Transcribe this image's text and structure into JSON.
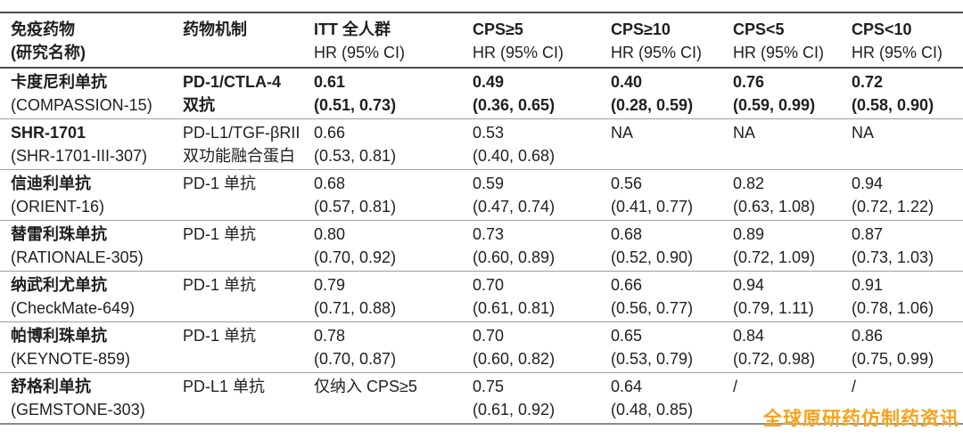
{
  "colors": {
    "text": "#1f1f1f",
    "border_strong": "#4d4d4d",
    "border_light": "#9e9e9e",
    "watermark": "#F5A31D"
  },
  "table": {
    "headers": [
      {
        "line1": "免疫药物",
        "line2": "(研究名称)"
      },
      {
        "line1": "药物机制",
        "line2": ""
      },
      {
        "line1": "ITT 全人群",
        "line2": "HR (95% CI)"
      },
      {
        "line1": "CPS≥5",
        "line2": "HR (95% CI)"
      },
      {
        "line1": "CPS≥10",
        "line2": "HR (95% CI)"
      },
      {
        "line1": "CPS<5",
        "line2": "HR (95% CI)"
      },
      {
        "line1": "CPS<10",
        "line2": "HR (95% CI)"
      }
    ],
    "rows": [
      {
        "drug": "卡度尼利单抗",
        "study": "(COMPASSION-15)",
        "mech1": "PD-1/CTLA-4",
        "mech2": "双抗",
        "emphasis": true,
        "itt": {
          "hr": "0.61",
          "ci": "(0.51, 0.73)"
        },
        "cps_ge5": {
          "hr": "0.49",
          "ci": "(0.36, 0.65)"
        },
        "cps_ge10": {
          "hr": "0.40",
          "ci": "(0.28, 0.59)"
        },
        "cps_lt5": {
          "hr": "0.76",
          "ci": "(0.59, 0.99)"
        },
        "cps_lt10": {
          "hr": "0.72",
          "ci": "(0.58, 0.90)"
        }
      },
      {
        "drug": "SHR-1701",
        "study": "(SHR-1701-III-307)",
        "mech1": "PD-L1/TGF-βRII",
        "mech2": "双功能融合蛋白",
        "emphasis": false,
        "itt": {
          "hr": "0.66",
          "ci": "(0.53, 0.81)"
        },
        "cps_ge5": {
          "hr": "0.53",
          "ci": "(0.40, 0.68)"
        },
        "cps_ge10": {
          "hr": "NA",
          "ci": ""
        },
        "cps_lt5": {
          "hr": "NA",
          "ci": ""
        },
        "cps_lt10": {
          "hr": "NA",
          "ci": ""
        }
      },
      {
        "drug": "信迪利单抗",
        "study": "(ORIENT-16)",
        "mech1": "PD-1 单抗",
        "mech2": "",
        "emphasis": false,
        "itt": {
          "hr": "0.68",
          "ci": "(0.57, 0.81)"
        },
        "cps_ge5": {
          "hr": "0.59",
          "ci": "(0.47, 0.74)"
        },
        "cps_ge10": {
          "hr": "0.56",
          "ci": "(0.41, 0.77)"
        },
        "cps_lt5": {
          "hr": "0.82",
          "ci": "(0.63, 1.08)"
        },
        "cps_lt10": {
          "hr": "0.94",
          "ci": "(0.72, 1.22)"
        }
      },
      {
        "drug": "替雷利珠单抗",
        "study": "(RATIONALE-305)",
        "mech1": "PD-1 单抗",
        "mech2": "",
        "emphasis": false,
        "itt": {
          "hr": "0.80",
          "ci": "(0.70, 0.92)"
        },
        "cps_ge5": {
          "hr": "0.73",
          "ci": "(0.60, 0.89)"
        },
        "cps_ge10": {
          "hr": "0.68",
          "ci": "(0.52, 0.90)"
        },
        "cps_lt5": {
          "hr": "0.89",
          "ci": "(0.72, 1.09)"
        },
        "cps_lt10": {
          "hr": "0.87",
          "ci": "(0.73, 1.03)"
        }
      },
      {
        "drug": "纳武利尤单抗",
        "study": "(CheckMate-649)",
        "mech1": "PD-1 单抗",
        "mech2": "",
        "emphasis": false,
        "itt": {
          "hr": "0.79",
          "ci": "(0.71, 0.88)"
        },
        "cps_ge5": {
          "hr": "0.70",
          "ci": "(0.61, 0.81)"
        },
        "cps_ge10": {
          "hr": "0.66",
          "ci": "(0.56, 0.77)"
        },
        "cps_lt5": {
          "hr": "0.94",
          "ci": "(0.79, 1.11)"
        },
        "cps_lt10": {
          "hr": "0.91",
          "ci": "(0.78, 1.06)"
        }
      },
      {
        "drug": "帕博利珠单抗",
        "study": "(KEYNOTE-859)",
        "mech1": "PD-1 单抗",
        "mech2": "",
        "emphasis": false,
        "itt": {
          "hr": "0.78",
          "ci": "(0.70, 0.87)"
        },
        "cps_ge5": {
          "hr": "0.70",
          "ci": "(0.60, 0.82)"
        },
        "cps_ge10": {
          "hr": "0.65",
          "ci": "(0.53, 0.79)"
        },
        "cps_lt5": {
          "hr": "0.84",
          "ci": "(0.72, 0.98)"
        },
        "cps_lt10": {
          "hr": "0.86",
          "ci": "(0.75, 0.99)"
        }
      },
      {
        "drug": "舒格利单抗",
        "study": "(GEMSTONE-303)",
        "mech1": "PD-L1 单抗",
        "mech2": "",
        "emphasis": false,
        "itt": {
          "hr": "仅纳入 CPS≥5",
          "ci": ""
        },
        "cps_ge5": {
          "hr": "0.75",
          "ci": "(0.61, 0.92)"
        },
        "cps_ge10": {
          "hr": "0.64",
          "ci": "(0.48, 0.85)"
        },
        "cps_lt5": {
          "hr": "/",
          "ci": ""
        },
        "cps_lt10": {
          "hr": "/",
          "ci": ""
        }
      }
    ]
  },
  "watermark": {
    "text": "全球原研药仿制药资讯"
  }
}
